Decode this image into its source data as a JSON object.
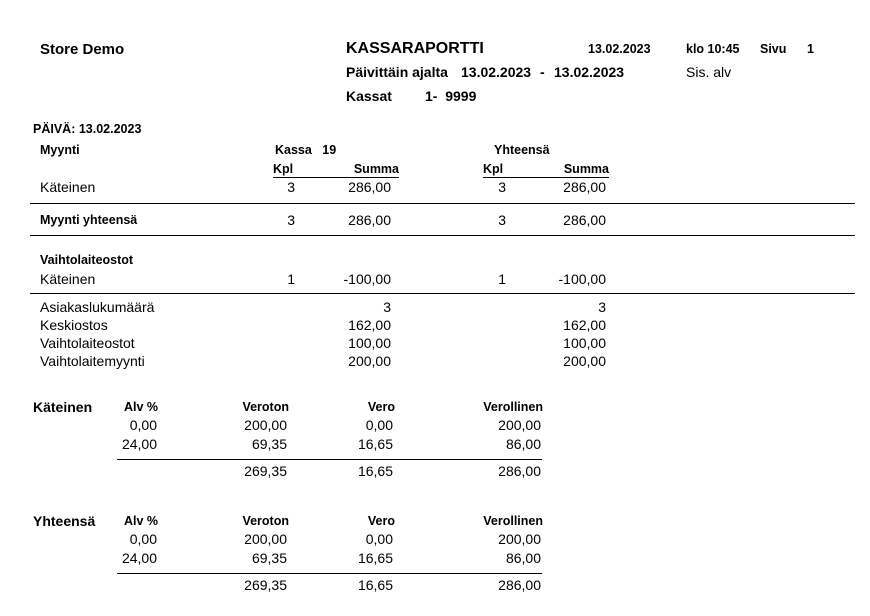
{
  "header": {
    "store": "Store Demo",
    "title": "KASSARAPORTTI",
    "date": "13.02.2023",
    "time": "klo 10:45",
    "page_label": "Sivu",
    "page_number": "1",
    "period_label": "Päivittäin ajalta",
    "period_from": "13.02.2023",
    "period_sep": "-",
    "period_to": "13.02.2023",
    "vat_mode": "Sis. alv",
    "registers_label": "Kassat",
    "registers_range": "1-  9999"
  },
  "day": "PÄIVÄ: 13.02.2023",
  "sales": {
    "title": "Myynti",
    "register_label": "Kassa   19",
    "total_label": "Yhteensä",
    "col_qty": "Kpl",
    "col_sum": "Summa",
    "rows": [
      {
        "label": "Käteinen",
        "qty": "3",
        "sum": "286,00",
        "tqty": "3",
        "tsum": "286,00"
      }
    ],
    "total": {
      "label": "Myynti yhteensä",
      "qty": "3",
      "sum": "286,00",
      "tqty": "3",
      "tsum": "286,00"
    }
  },
  "exchange": {
    "title": "Vaihtolaiteostot",
    "rows": [
      {
        "label": "Käteinen",
        "qty": "1",
        "sum": "-100,00",
        "tqty": "1",
        "tsum": "-100,00"
      }
    ]
  },
  "stats": [
    {
      "label": "Asiakaslukumäärä",
      "value": "3",
      "total": "3"
    },
    {
      "label": "Keskiostos",
      "value": "162,00",
      "total": "162,00"
    },
    {
      "label": "Vaihtolaiteostot",
      "value": "100,00",
      "total": "100,00"
    },
    {
      "label": "Vaihtolaitemyynti",
      "value": "200,00",
      "total": "200,00"
    }
  ],
  "vat_tables": [
    {
      "title": "Käteinen",
      "headers": [
        "Alv %",
        "Veroton",
        "Vero",
        "Verollinen"
      ],
      "rows": [
        [
          "0,00",
          "200,00",
          "0,00",
          "200,00"
        ],
        [
          "24,00",
          "69,35",
          "16,65",
          "86,00"
        ]
      ],
      "total": [
        "",
        "269,35",
        "16,65",
        "286,00"
      ]
    },
    {
      "title": "Yhteensä",
      "headers": [
        "Alv %",
        "Veroton",
        "Vero",
        "Verollinen"
      ],
      "rows": [
        [
          "0,00",
          "200,00",
          "0,00",
          "200,00"
        ],
        [
          "24,00",
          "69,35",
          "16,65",
          "86,00"
        ]
      ],
      "total": [
        "",
        "269,35",
        "16,65",
        "286,00"
      ]
    }
  ]
}
